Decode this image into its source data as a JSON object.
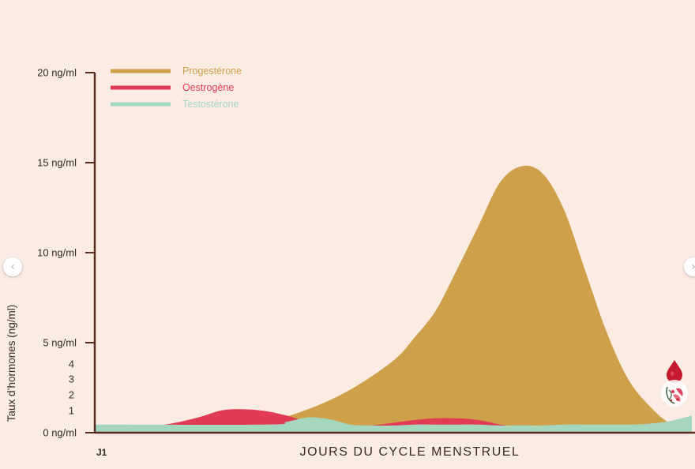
{
  "nav": {
    "prev_icon": "‹",
    "next_icon": "›"
  },
  "chart_data": {
    "type": "area",
    "title": "",
    "xlabel": "JOURS DU CYCLE MENSTRUEL",
    "x_start_label": "J1",
    "ylabel": "Taux d’hormones (ng/ml)",
    "y_major_ticks": [
      {
        "value": 0,
        "label": "0 ng/ml"
      },
      {
        "value": 5,
        "label": "5 ng/ml"
      },
      {
        "value": 10,
        "label": "10 ng/ml"
      },
      {
        "value": 15,
        "label": "15 ng/ml"
      },
      {
        "value": 20,
        "label": "20 ng/ml"
      }
    ],
    "y_minor_labels": [
      {
        "value": 1,
        "label": "1"
      },
      {
        "value": 2,
        "label": "2"
      },
      {
        "value": 3,
        "label": "3"
      },
      {
        "value": 4,
        "label": "4"
      }
    ],
    "xlim": [
      0,
      28
    ],
    "ylim": [
      0,
      20
    ],
    "legend_position": "top-left",
    "grid": false,
    "colors": {
      "axis": "#5a2a1e",
      "background": "#fbece3",
      "progesterone": "#cfa04a",
      "oestrogen": "#e23b56",
      "testosterone": "#a5d6be",
      "drop_icon": "#c4192e"
    },
    "series": [
      {
        "name": "Progestérone",
        "color": "#cfa04a",
        "x": [
          0,
          6,
          8,
          10,
          12,
          14,
          15,
          16,
          17,
          18,
          19,
          20,
          21,
          22,
          23,
          24,
          25,
          26,
          27,
          28
        ],
        "y": [
          0.3,
          0.3,
          0.6,
          1.3,
          2.4,
          4.0,
          5.3,
          6.8,
          9.1,
          11.5,
          13.9,
          14.8,
          14.4,
          12.4,
          9.0,
          5.6,
          3.0,
          1.5,
          0.5,
          0.3
        ]
      },
      {
        "name": "Oestrogène",
        "color": "#e23b56",
        "x": [
          0,
          1,
          2,
          3,
          4,
          5,
          6,
          7,
          8,
          9,
          10,
          11,
          12,
          13,
          14,
          15,
          16,
          17,
          18,
          19,
          20,
          21,
          22,
          28
        ],
        "y": [
          0.3,
          0.3,
          0.3,
          0.4,
          0.6,
          0.9,
          1.25,
          1.3,
          1.2,
          0.95,
          0.6,
          0.4,
          0.35,
          0.4,
          0.55,
          0.7,
          0.8,
          0.8,
          0.7,
          0.45,
          0.3,
          0.3,
          0.3,
          0.3
        ]
      },
      {
        "name": "Testostérone",
        "color": "#a5d6be",
        "x": [
          0,
          8,
          9,
          10,
          11,
          12,
          13,
          14,
          15,
          16,
          17,
          18,
          19,
          20,
          21,
          22,
          23,
          24,
          25,
          26,
          27,
          28
        ],
        "y": [
          0.45,
          0.45,
          0.6,
          0.85,
          0.75,
          0.45,
          0.4,
          0.4,
          0.45,
          0.45,
          0.45,
          0.45,
          0.4,
          0.4,
          0.4,
          0.45,
          0.45,
          0.45,
          0.45,
          0.5,
          0.65,
          0.95
        ]
      }
    ]
  }
}
